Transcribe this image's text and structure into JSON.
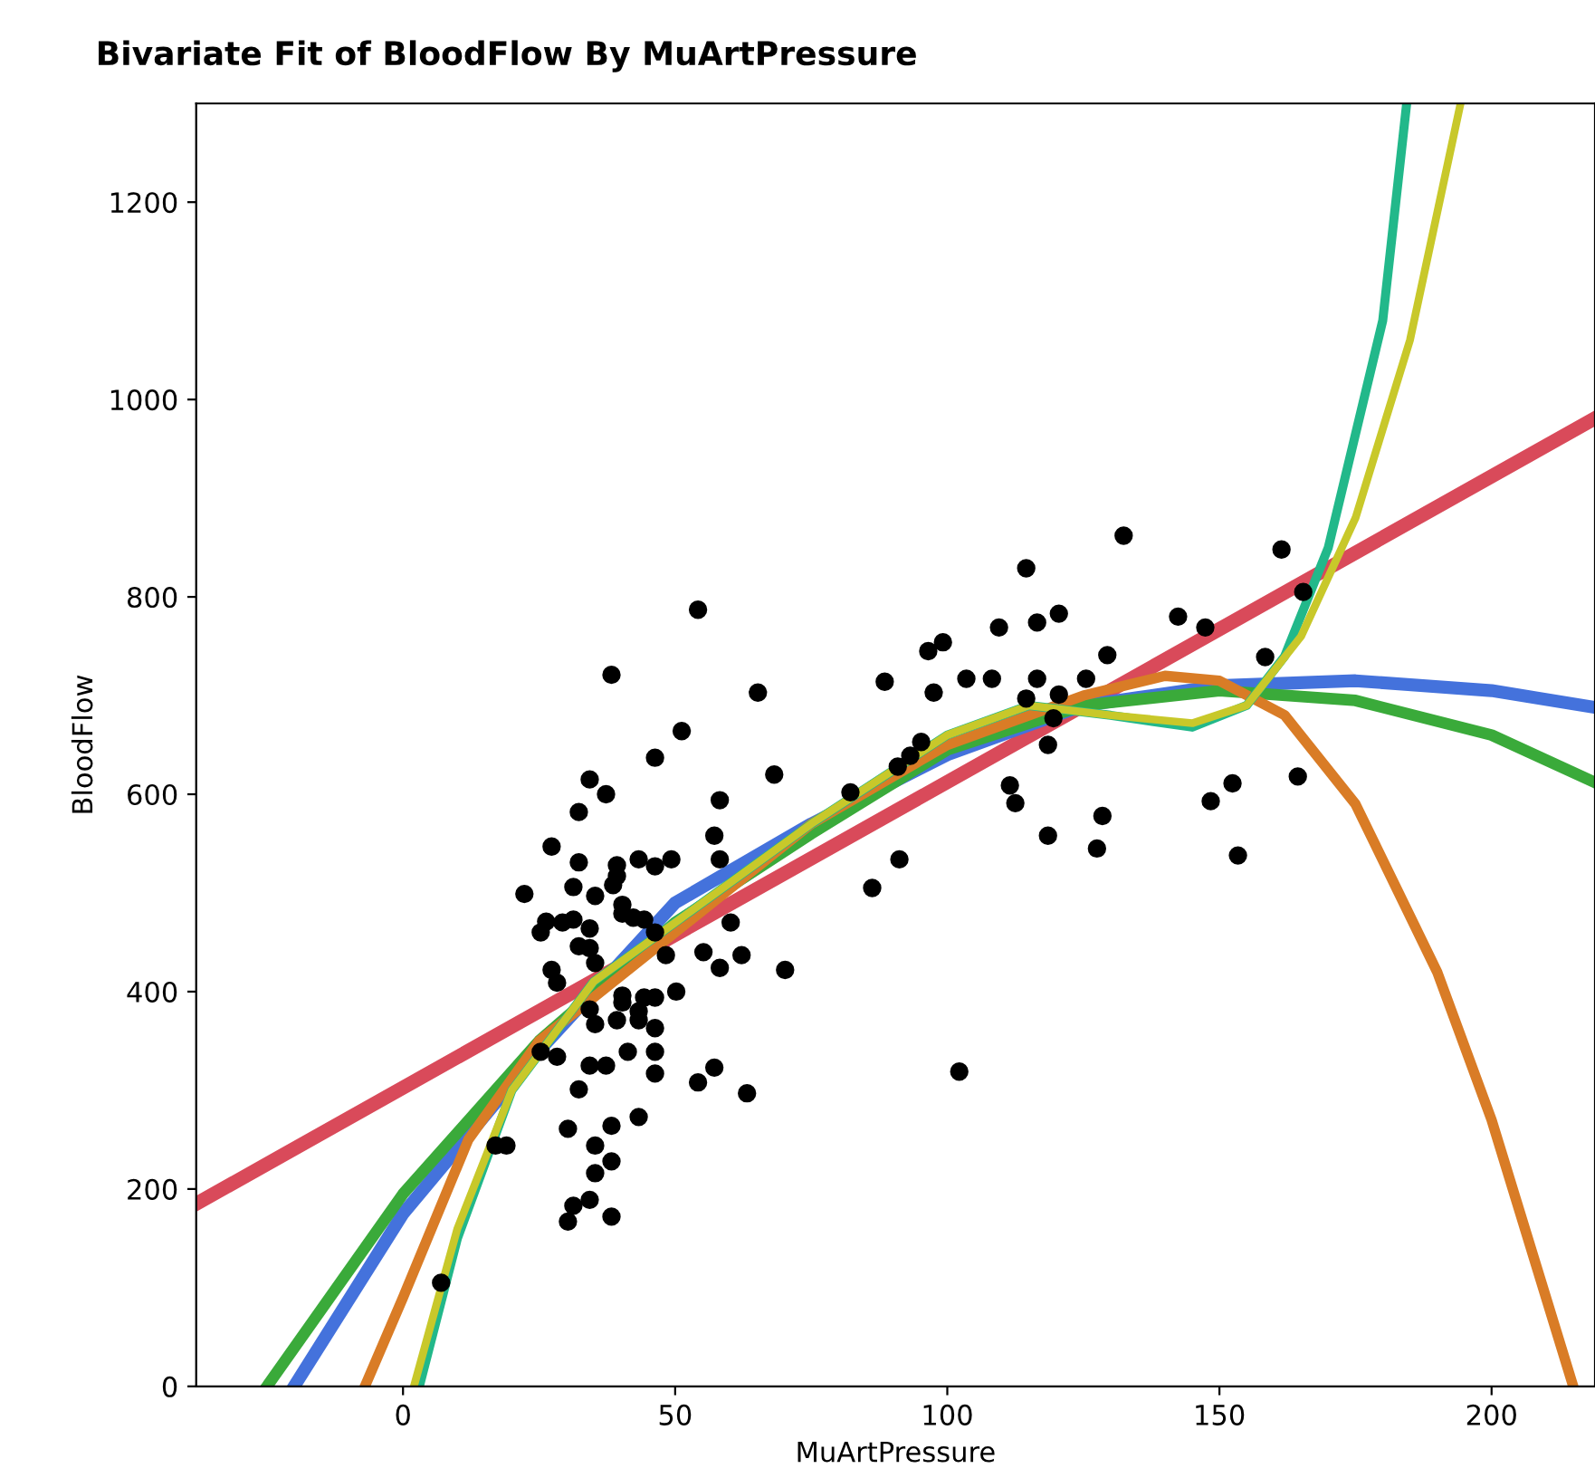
{
  "chart_data": {
    "type": "scatter",
    "title": "Bivariate Fit of BloodFlow By MuArtPressure",
    "xlabel": "MuArtPressure",
    "ylabel": "BloodFlow",
    "xlim": [
      -38,
      219
    ],
    "ylim": [
      0,
      1300
    ],
    "xticks": [
      0,
      50,
      100,
      150,
      200
    ],
    "yticks": [
      0,
      200,
      400,
      600,
      800,
      1000,
      1200
    ],
    "grid": false,
    "legend": false,
    "series": [
      {
        "marker": "circle",
        "color": "#000000",
        "x": [
          54.2,
          38.3,
          65.2,
          51.2,
          46.3,
          68.2,
          34.3,
          37.3,
          58.2,
          32.3,
          57.2,
          27.3,
          32.3,
          39.3,
          43.3,
          46.3,
          49.3,
          58.2,
          39.3,
          38.6,
          31.3,
          22.3,
          35.3,
          40.3,
          40.3,
          42.3,
          44.3,
          26.3,
          31.3,
          29.3,
          25.3,
          34.3,
          46.3,
          60.2,
          32.3,
          34.3,
          48.3,
          55.2,
          62.2,
          58.2,
          70.2,
          35.3,
          27.3,
          28.3,
          40.3,
          40.3,
          44.3,
          46.3,
          50.2,
          34.3,
          35.3,
          39.3,
          43.3,
          43.3,
          46.3,
          25.3,
          28.3,
          41.3,
          46.3,
          34.3,
          37.3,
          46.3,
          57.2,
          54.2,
          63.2,
          32.3,
          43.3,
          30.3,
          38.3,
          17.0,
          19.0,
          35.3,
          38.3,
          35.3,
          34.3,
          31.3,
          38.3,
          30.3,
          7.0,
          132.4,
          114.5,
          161.4,
          165.4,
          120.5,
          116.5,
          109.5,
          142.4,
          147.4,
          99.2,
          96.5,
          129.4,
          158.4,
          88.5,
          103.5,
          108.2,
          116.5,
          125.5,
          97.5,
          114.5,
          120.5,
          119.5,
          95.2,
          93.2,
          118.5,
          90.9,
          82.2,
          111.5,
          112.5,
          152.4,
          148.4,
          164.4,
          128.5,
          118.5,
          127.5,
          153.4,
          91.2,
          86.2,
          102.2
        ],
        "values": [
          787,
          721,
          703,
          664,
          637,
          620,
          615,
          600,
          594,
          582,
          558,
          547,
          531,
          528,
          534,
          527,
          534,
          534,
          517,
          508,
          506,
          499,
          497,
          488,
          479,
          475,
          473,
          471,
          473,
          470,
          460,
          464,
          460,
          470,
          446,
          444,
          437,
          440,
          437,
          424,
          422,
          429,
          422,
          409,
          396,
          389,
          394,
          394,
          400,
          382,
          367,
          371,
          380,
          371,
          363,
          339,
          334,
          339,
          339,
          325,
          325,
          317,
          323,
          308,
          297,
          301,
          273,
          261,
          264,
          244,
          244,
          244,
          228,
          216,
          189,
          183,
          172,
          167,
          105,
          862,
          829,
          848,
          805,
          783,
          774,
          769,
          780,
          769,
          754,
          745,
          741,
          739,
          714,
          717,
          717,
          717,
          717,
          703,
          697,
          701,
          677,
          653,
          639,
          650,
          628,
          602,
          609,
          591,
          611,
          593,
          618,
          578,
          558,
          545,
          538,
          534,
          505,
          319
        ]
      },
      {
        "type": "line",
        "color": "#d94a5a",
        "x": [
          -38,
          219
        ],
        "values": [
          185,
          981
        ]
      },
      {
        "type": "line",
        "color": "#4472dc",
        "x": [
          -20,
          0,
          25,
          50,
          75,
          100,
          125,
          150,
          175,
          200,
          219
        ],
        "values": [
          0,
          175,
          340,
          490,
          570,
          640,
          690,
          710,
          715,
          705,
          688
        ]
      },
      {
        "type": "line",
        "color": "#3aaa3a",
        "x": [
          -25,
          0,
          25,
          50,
          75,
          100,
          125,
          150,
          175,
          200,
          219
        ],
        "values": [
          0,
          195,
          350,
          470,
          560,
          645,
          690,
          705,
          695,
          660,
          612
        ]
      },
      {
        "type": "line",
        "color": "#d97c26",
        "x": [
          -7,
          0,
          12,
          25,
          50,
          75,
          100,
          125,
          140,
          150,
          162,
          175,
          190,
          200,
          210,
          215
        ],
        "values": [
          0,
          90,
          250,
          350,
          460,
          570,
          650,
          700,
          720,
          715,
          680,
          590,
          420,
          270,
          90,
          0
        ]
      },
      {
        "type": "line",
        "color": "#22b88a",
        "x": [
          3,
          10,
          20,
          35,
          50,
          75,
          100,
          115,
          130,
          145,
          155,
          162,
          170,
          180,
          184.4
        ],
        "values": [
          0,
          150,
          300,
          410,
          470,
          570,
          660,
          690,
          680,
          668,
          690,
          740,
          850,
          1080,
          1300
        ]
      },
      {
        "type": "line",
        "color": "#c8c82a",
        "x": [
          2,
          10,
          20,
          35,
          50,
          75,
          100,
          115,
          130,
          145,
          155,
          165,
          175,
          185,
          194.3
        ],
        "values": [
          0,
          160,
          300,
          410,
          470,
          570,
          660,
          690,
          680,
          672,
          690,
          760,
          880,
          1060,
          1300
        ]
      }
    ]
  }
}
